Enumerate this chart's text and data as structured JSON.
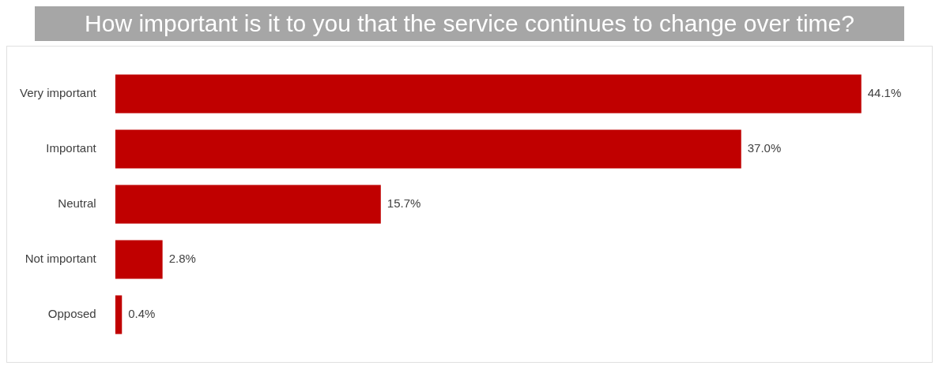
{
  "chart_data": {
    "type": "bar",
    "orientation": "horizontal",
    "title": "How important is it to you that the service continues to change over time?",
    "categories": [
      "Very important",
      "Important",
      "Neutral",
      "Not important",
      "Opposed"
    ],
    "values": [
      44.1,
      37.0,
      15.7,
      2.8,
      0.4
    ],
    "value_labels": [
      "44.1%",
      "37.0%",
      "15.7%",
      "2.8%",
      "0.4%"
    ],
    "color": "#c00000",
    "grid": false,
    "legend": false,
    "tick_labels": "y"
  }
}
